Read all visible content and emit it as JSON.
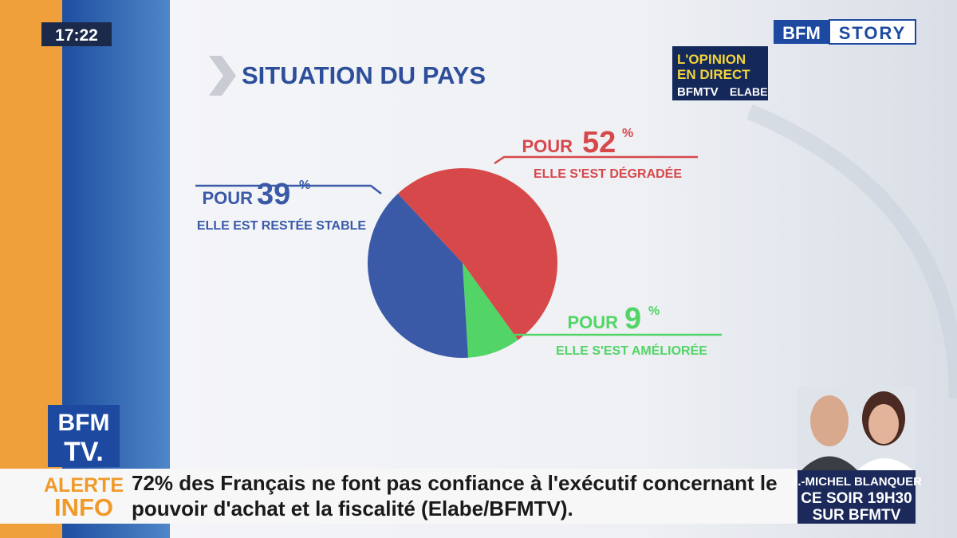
{
  "clock": "17:22",
  "channel_logo": {
    "brand": "BFM",
    "show": "STORY"
  },
  "poll_badge": {
    "line1": "L'OPINION",
    "line2": "EN DIRECT",
    "brand": "BFMTV",
    "partner": "ELABE"
  },
  "corner_logo": {
    "top": "BFM",
    "bottom": "TV."
  },
  "chart_data": {
    "type": "pie",
    "title": "SITUATION DU PAYS",
    "label_prefix": "POUR",
    "unit": "%",
    "categories": [
      "ELLE S'EST DÉGRADÉE",
      "ELLE S'EST AMÉLIORÉE",
      "ELLE EST RESTÉE STABLE"
    ],
    "values": [
      52,
      9,
      39
    ],
    "colors": [
      "#d7484b",
      "#52d466",
      "#3a5aa8"
    ]
  },
  "ticker": {
    "tag1": "ALERTE",
    "tag2": "INFO",
    "lines": [
      "72% des Français ne font pas confiance à l'exécutif concernant le",
      "pouvoir d'achat et la fiscalité (Elabe/BFMTV)."
    ]
  },
  "promo": {
    "lines": [
      "J.-MICHEL BLANQUER",
      "CE SOIR 19H30",
      "SUR BFMTV"
    ]
  }
}
